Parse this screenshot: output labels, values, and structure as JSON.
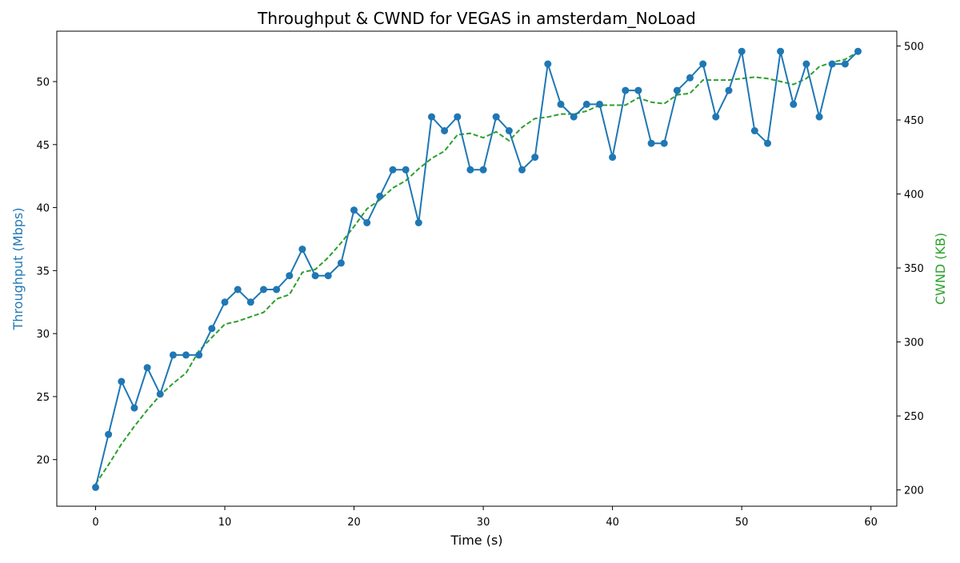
{
  "chart_data": {
    "type": "line",
    "title": "Throughput & CWND for VEGAS in amsterdam_NoLoad",
    "xlabel": "Time (s)",
    "ylabel_left": "Throughput (Mbps)",
    "ylabel_right": "CWND (KB)",
    "xlim": [
      -3,
      62
    ],
    "ylim_left": [
      16.3,
      54.0
    ],
    "ylim_right": [
      189,
      510
    ],
    "x_ticks": [
      0,
      10,
      20,
      30,
      40,
      50,
      60
    ],
    "y_left_ticks": [
      20,
      25,
      30,
      35,
      40,
      45,
      50
    ],
    "y_right_ticks": [
      200,
      250,
      300,
      350,
      400,
      450,
      500
    ],
    "grid": false,
    "series": [
      {
        "axis": "left",
        "style": "solid-line-circle-markers",
        "color": "#1f77b4",
        "x": [
          0,
          1,
          2,
          3,
          4,
          5,
          6,
          7,
          8,
          9,
          10,
          11,
          12,
          13,
          14,
          15,
          16,
          17,
          18,
          19,
          20,
          21,
          22,
          23,
          24,
          25,
          26,
          27,
          28,
          29,
          30,
          31,
          32,
          33,
          34,
          35,
          36,
          37,
          38,
          39,
          40,
          41,
          42,
          43,
          44,
          45,
          46,
          47,
          48,
          49,
          50,
          51,
          52,
          53,
          54,
          55,
          56,
          57,
          58,
          59
        ],
        "values": [
          17.8,
          22.0,
          26.2,
          24.1,
          27.3,
          25.2,
          28.3,
          28.3,
          28.3,
          30.4,
          32.5,
          33.5,
          32.5,
          33.5,
          33.5,
          34.6,
          36.7,
          34.6,
          34.6,
          35.6,
          39.8,
          38.8,
          40.9,
          43.0,
          43.0,
          38.8,
          47.2,
          46.1,
          47.2,
          43.0,
          43.0,
          47.2,
          46.1,
          43.0,
          44.0,
          51.4,
          48.2,
          47.2,
          48.2,
          48.2,
          44.0,
          49.3,
          49.3,
          45.1,
          45.1,
          49.3,
          50.3,
          51.4,
          47.2,
          49.3,
          52.4,
          46.1,
          45.1,
          52.4,
          48.2,
          51.4,
          47.2,
          51.4,
          51.4,
          52.4
        ]
      },
      {
        "axis": "right",
        "style": "dashed-line",
        "color": "#2ca02c",
        "x": [
          0,
          1,
          2,
          3,
          4,
          5,
          6,
          7,
          8,
          9,
          10,
          11,
          12,
          13,
          14,
          15,
          16,
          17,
          18,
          19,
          20,
          21,
          22,
          23,
          24,
          25,
          26,
          27,
          28,
          29,
          30,
          31,
          32,
          33,
          34,
          35,
          36,
          37,
          38,
          39,
          40,
          41,
          42,
          43,
          44,
          45,
          46,
          47,
          48,
          49,
          50,
          51,
          52,
          53,
          54,
          55,
          56,
          57,
          58,
          59
        ],
        "values": [
          204,
          217,
          231,
          243,
          254,
          264,
          272,
          279,
          294,
          303,
          312,
          314,
          317,
          320,
          329,
          332,
          347,
          349,
          357,
          367,
          378,
          390,
          396,
          404,
          409,
          417,
          424,
          429,
          440,
          441,
          438,
          442,
          436,
          445,
          451,
          452,
          454,
          454,
          456,
          460,
          460,
          460,
          465,
          462,
          461,
          467,
          468,
          477,
          477,
          477,
          478,
          479,
          478,
          476,
          474,
          478,
          486,
          489,
          491,
          496
        ]
      }
    ]
  }
}
